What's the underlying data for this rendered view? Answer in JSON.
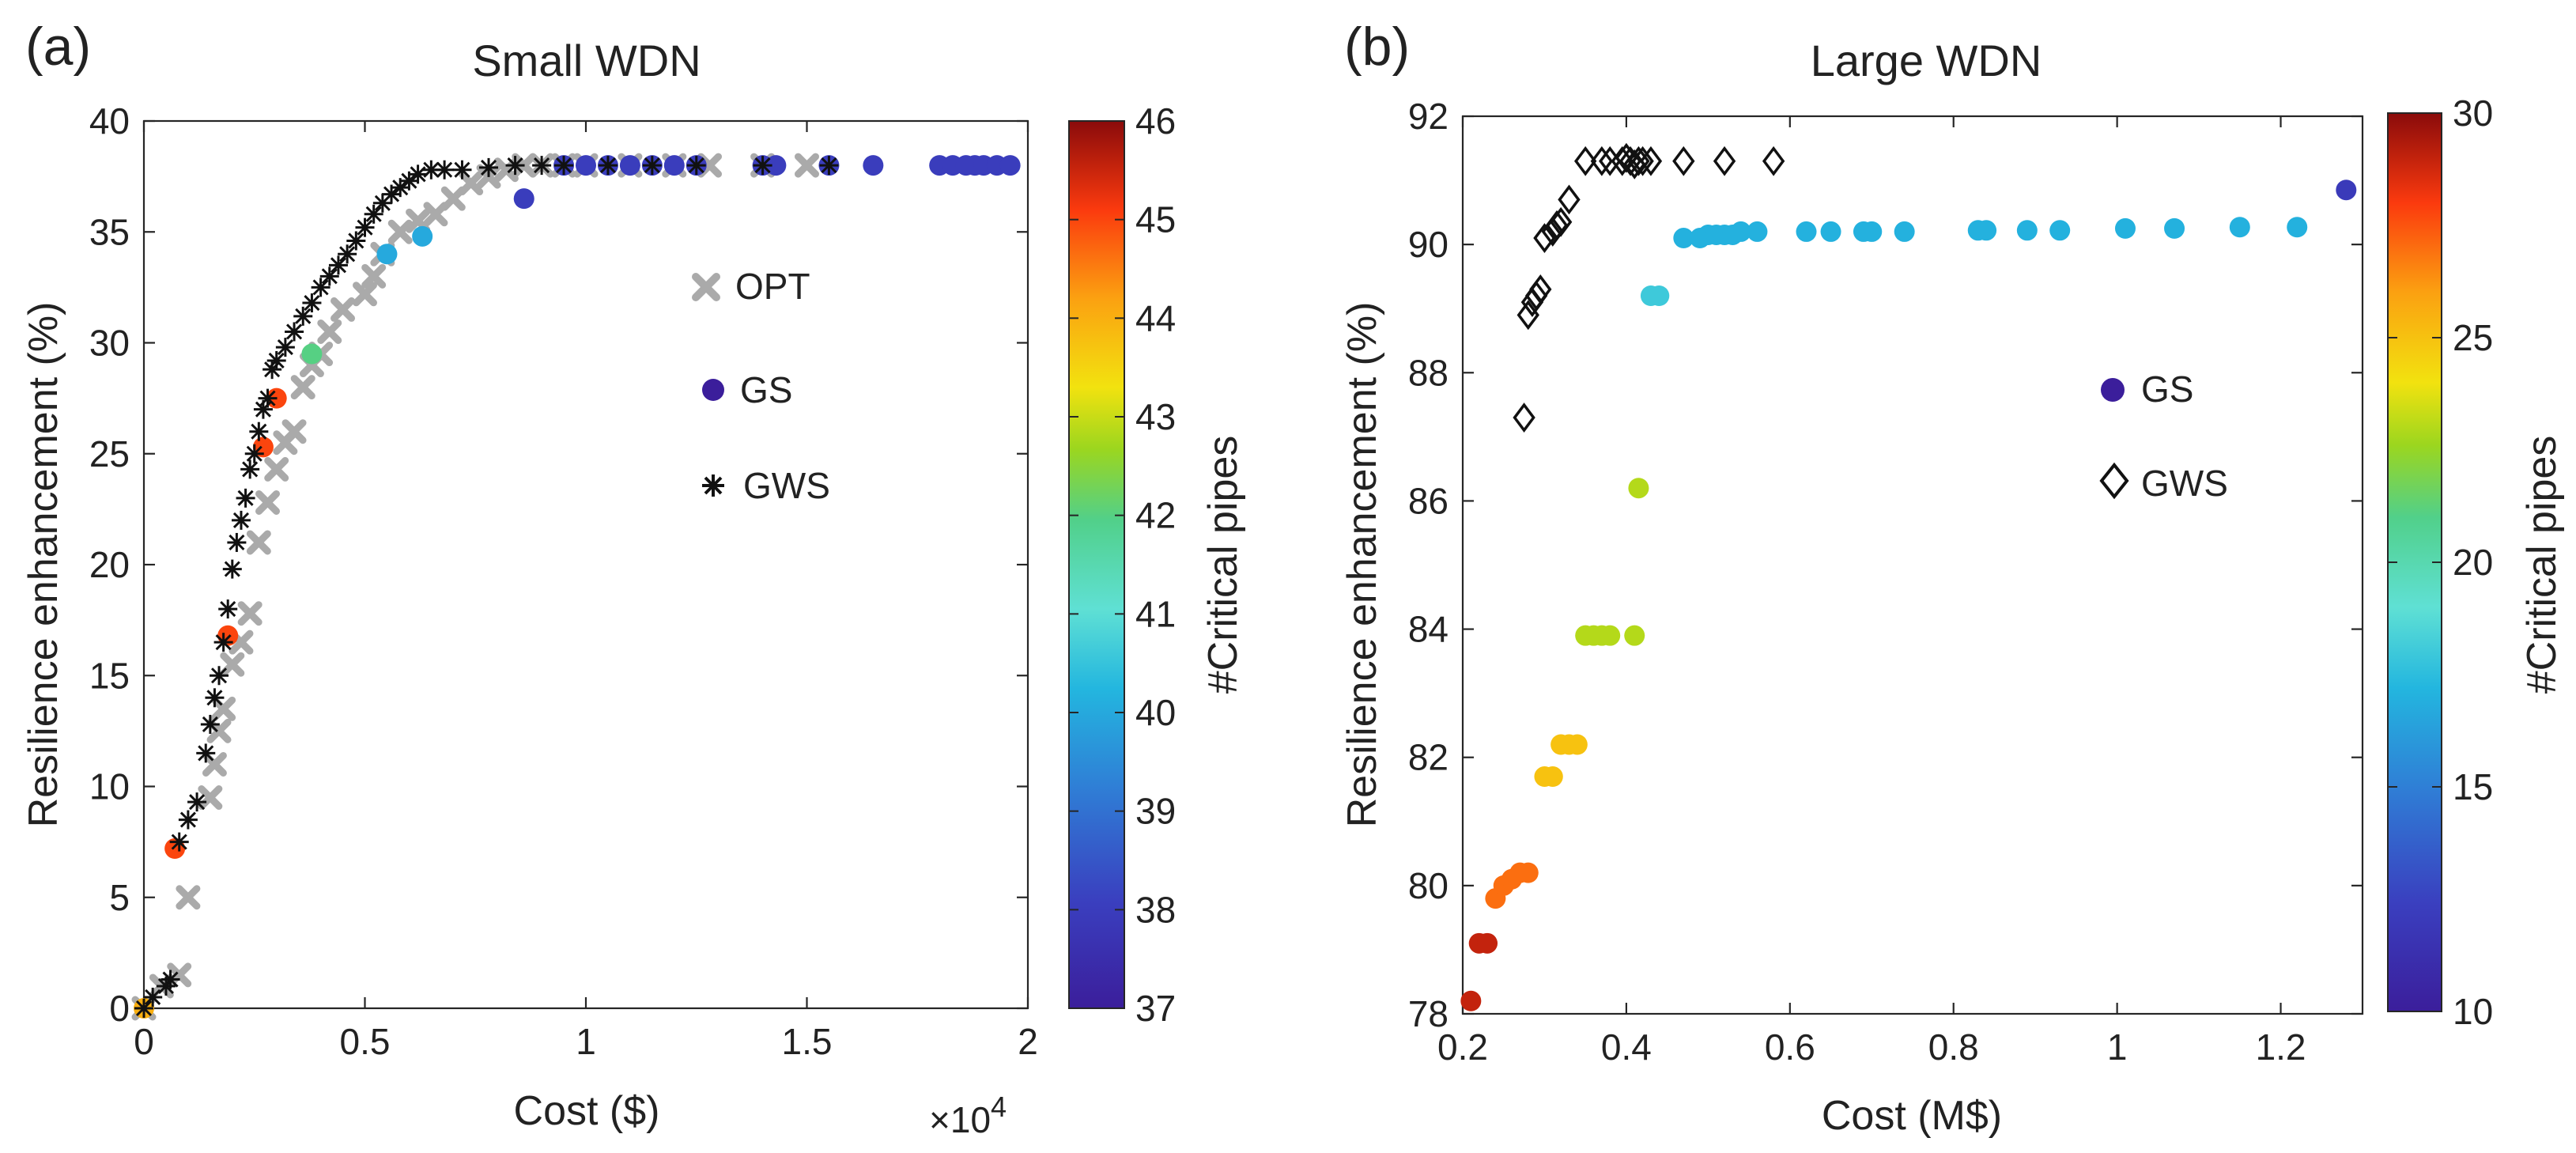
{
  "chart_data": [
    {
      "panel_label": "(a)",
      "type": "scatter",
      "title": "Small WDN",
      "xlabel": "Cost ($)",
      "ylabel": "Resilience enhancement (%)",
      "x_multiplier_label": "×10",
      "x_multiplier_exp": "4",
      "xlim": [
        0,
        2
      ],
      "ylim": [
        0,
        40
      ],
      "xticks": [
        "0",
        "0.5",
        "1",
        "1.5",
        "2"
      ],
      "yticks": [
        "0",
        "5",
        "10",
        "15",
        "20",
        "25",
        "30",
        "35",
        "40"
      ],
      "colorbar": {
        "label": "#Critical pipes",
        "min": 37,
        "max": 46,
        "ticks": [
          "37",
          "38",
          "39",
          "40",
          "41",
          "42",
          "43",
          "44",
          "45",
          "46"
        ]
      },
      "legend": [
        {
          "label": "OPT",
          "marker": "x-gray"
        },
        {
          "label": "GS",
          "marker": "circle"
        },
        {
          "label": "GWS",
          "marker": "asterisk"
        }
      ],
      "series": [
        {
          "name": "OPT",
          "x": [
            0.0,
            0.04,
            0.08,
            0.1,
            0.15,
            0.16,
            0.17,
            0.18,
            0.2,
            0.22,
            0.24,
            0.26,
            0.28,
            0.3,
            0.32,
            0.34,
            0.36,
            0.38,
            0.4,
            0.42,
            0.45,
            0.5,
            0.52,
            0.54,
            0.58,
            0.62,
            0.66,
            0.7,
            0.74,
            0.78,
            0.82,
            0.86,
            0.9,
            0.95,
            1.0,
            1.1,
            1.2,
            1.28,
            1.4,
            1.5
          ],
          "y": [
            0.0,
            1.0,
            1.5,
            5.0,
            9.5,
            11.0,
            12.5,
            13.5,
            15.5,
            16.5,
            17.8,
            21.0,
            22.8,
            24.3,
            25.5,
            26.0,
            28.0,
            29.0,
            29.5,
            30.5,
            31.5,
            32.2,
            33.0,
            34.0,
            35.0,
            35.5,
            35.8,
            36.5,
            37.2,
            37.5,
            37.8,
            38.0,
            38.0,
            38.0,
            38.0,
            38.0,
            38.0,
            38.0,
            38.0,
            38.0
          ]
        },
        {
          "name": "GS",
          "x": [
            0.0,
            0.07,
            0.19,
            0.27,
            0.3,
            0.38,
            0.55,
            0.63,
            0.86,
            0.95,
            1.0,
            1.05,
            1.1,
            1.15,
            1.2,
            1.25,
            1.4,
            1.43,
            1.55,
            1.65,
            1.8,
            1.83,
            1.86,
            1.88,
            1.9,
            1.93,
            1.96
          ],
          "y": [
            0.0,
            7.2,
            16.8,
            25.3,
            27.5,
            29.5,
            34.0,
            34.8,
            36.5,
            38.0,
            38.0,
            38.0,
            38.0,
            38.0,
            38.0,
            38.0,
            38.0,
            38.0,
            38.0,
            38.0,
            38.0,
            38.0,
            38.0,
            38.0,
            38.0,
            38.0,
            38.0
          ],
          "critical_pipes": [
            44,
            45,
            45,
            45,
            45,
            42,
            40,
            40,
            38,
            38,
            38,
            38,
            38,
            38,
            38,
            38,
            38,
            38,
            38,
            38,
            38,
            38,
            38,
            38,
            38,
            38,
            38
          ]
        },
        {
          "name": "GWS",
          "x": [
            0.0,
            0.02,
            0.05,
            0.06,
            0.08,
            0.1,
            0.12,
            0.14,
            0.15,
            0.16,
            0.17,
            0.18,
            0.19,
            0.2,
            0.21,
            0.22,
            0.23,
            0.24,
            0.25,
            0.26,
            0.27,
            0.28,
            0.29,
            0.3,
            0.32,
            0.34,
            0.36,
            0.38,
            0.4,
            0.42,
            0.44,
            0.46,
            0.48,
            0.5,
            0.52,
            0.54,
            0.56,
            0.58,
            0.6,
            0.62,
            0.65,
            0.68,
            0.72,
            0.78,
            0.84,
            0.9,
            0.95,
            1.05,
            1.15,
            1.25,
            1.4,
            1.55
          ],
          "y": [
            0.0,
            0.5,
            1.0,
            1.3,
            7.5,
            8.5,
            9.3,
            11.5,
            12.8,
            14.0,
            15.0,
            16.5,
            18.0,
            19.8,
            21.0,
            22.0,
            23.0,
            24.3,
            25.0,
            26.0,
            27.0,
            27.5,
            28.8,
            29.2,
            29.8,
            30.5,
            31.2,
            31.8,
            32.5,
            33.0,
            33.5,
            34.0,
            34.6,
            35.2,
            35.8,
            36.3,
            36.7,
            37.0,
            37.3,
            37.6,
            37.8,
            37.8,
            37.8,
            37.9,
            38.0,
            38.0,
            38.0,
            38.0,
            38.0,
            38.0,
            38.0,
            38.0
          ]
        }
      ]
    },
    {
      "panel_label": "(b)",
      "type": "scatter",
      "title": "Large WDN",
      "xlabel": "Cost (M$)",
      "ylabel": "Resilience enhancement (%)",
      "xlim": [
        0.2,
        1.3
      ],
      "ylim": [
        78,
        92
      ],
      "xticks": [
        "0.2",
        "0.4",
        "0.6",
        "0.8",
        "1",
        "1.2"
      ],
      "yticks": [
        "78",
        "80",
        "82",
        "84",
        "86",
        "88",
        "90",
        "92"
      ],
      "colorbar": {
        "label": "#Critical pipes",
        "min": 10,
        "max": 30,
        "ticks": [
          "10",
          "15",
          "20",
          "25",
          "30"
        ]
      },
      "legend": [
        {
          "label": "GS",
          "marker": "circle"
        },
        {
          "label": "GWS",
          "marker": "diamond"
        }
      ],
      "series": [
        {
          "name": "GS",
          "x": [
            0.21,
            0.22,
            0.23,
            0.24,
            0.25,
            0.26,
            0.27,
            0.28,
            0.3,
            0.31,
            0.32,
            0.33,
            0.34,
            0.35,
            0.36,
            0.37,
            0.38,
            0.41,
            0.415,
            0.43,
            0.44,
            0.47,
            0.49,
            0.5,
            0.51,
            0.52,
            0.53,
            0.54,
            0.56,
            0.62,
            0.65,
            0.69,
            0.7,
            0.74,
            0.83,
            0.84,
            0.89,
            0.93,
            1.01,
            1.07,
            1.15,
            1.22,
            1.28
          ],
          "y": [
            78.2,
            79.1,
            79.1,
            79.8,
            80.0,
            80.1,
            80.2,
            80.2,
            81.7,
            81.7,
            82.2,
            82.2,
            82.2,
            83.9,
            83.9,
            83.9,
            83.9,
            83.9,
            86.2,
            89.2,
            89.2,
            90.1,
            90.1,
            90.15,
            90.15,
            90.15,
            90.15,
            90.2,
            90.2,
            90.2,
            90.2,
            90.2,
            90.2,
            90.2,
            90.22,
            90.22,
            90.22,
            90.22,
            90.25,
            90.25,
            90.27,
            90.27,
            90.85
          ],
          "critical_pipes": [
            29,
            29,
            29,
            27,
            27,
            27,
            27,
            27,
            25,
            25,
            25,
            25,
            25,
            23,
            23,
            23,
            23,
            23,
            23,
            18,
            18,
            17,
            17,
            17,
            17,
            17,
            17,
            17,
            17,
            17,
            17,
            17,
            17,
            17,
            17,
            17,
            17,
            17,
            17,
            17,
            17,
            17,
            12
          ]
        },
        {
          "name": "GWS",
          "x": [
            0.275,
            0.28,
            0.285,
            0.29,
            0.295,
            0.3,
            0.31,
            0.315,
            0.32,
            0.33,
            0.35,
            0.37,
            0.38,
            0.395,
            0.4,
            0.405,
            0.41,
            0.415,
            0.42,
            0.43,
            0.47,
            0.52,
            0.58
          ],
          "y": [
            87.3,
            88.9,
            89.1,
            89.2,
            89.3,
            90.1,
            90.2,
            90.3,
            90.35,
            90.7,
            91.3,
            91.3,
            91.3,
            91.3,
            91.35,
            91.3,
            91.25,
            91.3,
            91.3,
            91.3,
            91.3,
            91.3,
            91.3
          ]
        }
      ]
    }
  ]
}
